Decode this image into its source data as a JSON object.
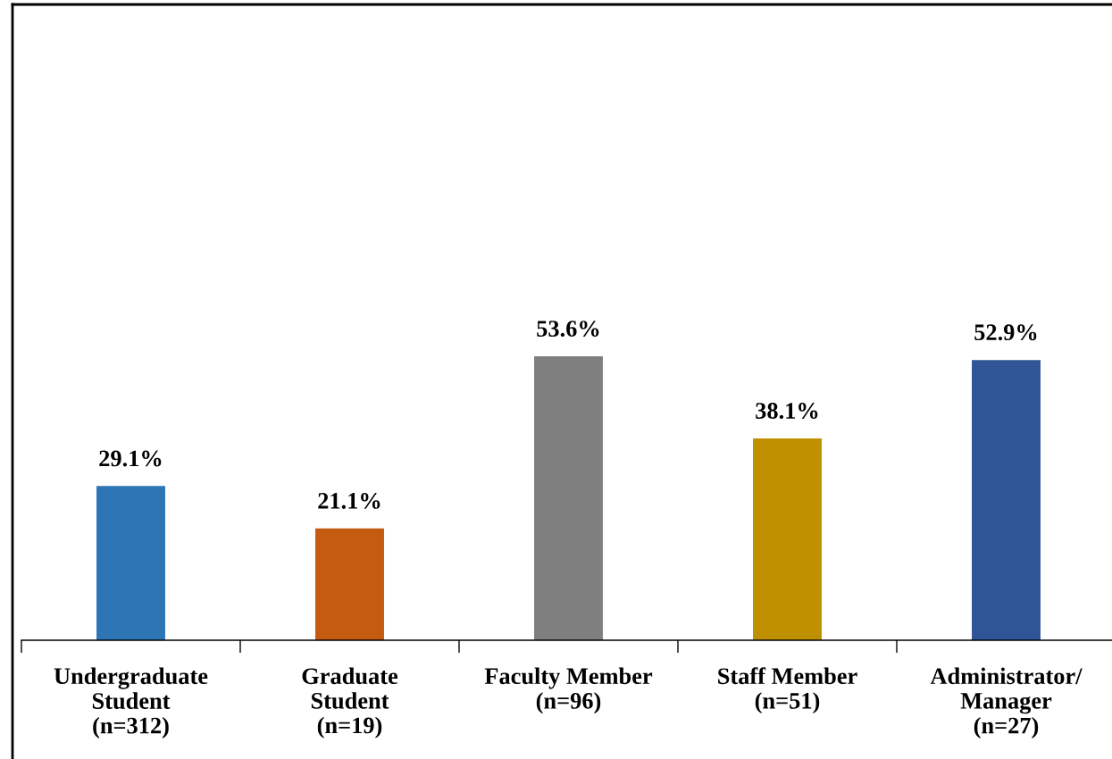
{
  "chart_data": {
    "type": "bar",
    "categories": [
      "Undergraduate\nStudent\n(n=312)",
      "Graduate\nStudent\n(n=19)",
      "Faculty Member\n(n=96)",
      "Staff Member\n(n=51)",
      "Administrator/\nManager\n(n=27)"
    ],
    "values": [
      29.1,
      21.1,
      53.6,
      38.1,
      52.9
    ],
    "colors": [
      "#2e75b6",
      "#c55a11",
      "#7f7f7f",
      "#bf9000",
      "#2f5597"
    ],
    "value_labels": [
      "29.1%",
      "21.1%",
      "53.6%",
      "38.1%",
      "52.9%"
    ],
    "ylim": [
      0,
      120
    ],
    "tick_labels": "x",
    "grid": false,
    "legend": false
  }
}
